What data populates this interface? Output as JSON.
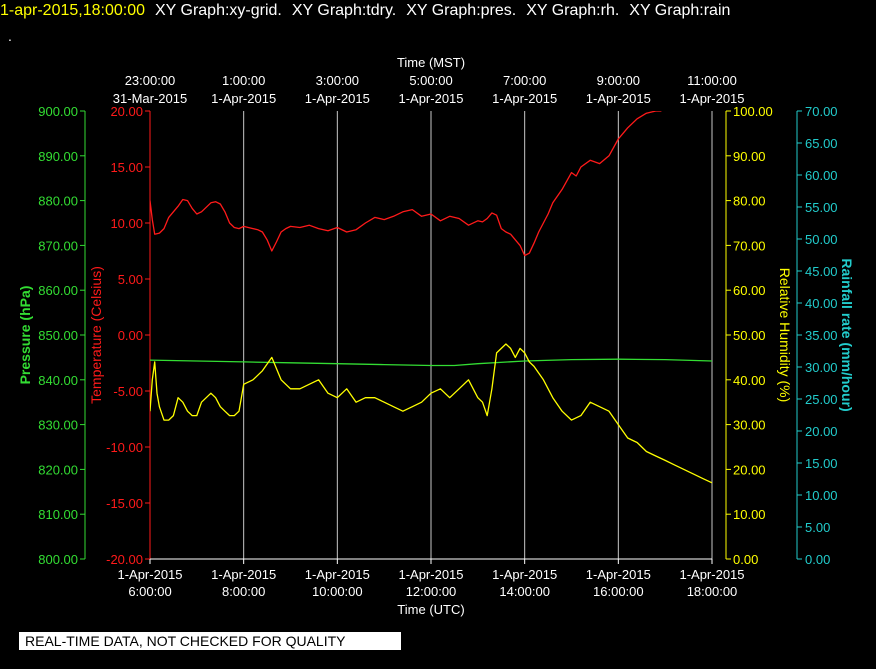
{
  "header": {
    "datetime": "1-apr-2015,18:00:00",
    "graphs": [
      "XY Graph:xy-grid.",
      "XY Graph:tdry.",
      "XY Graph:pres.",
      "XY Graph:rh.",
      "XY Graph:rain"
    ],
    "dot": "."
  },
  "footer_note": "REAL-TIME DATA, NOT CHECKED FOR QUALITY",
  "colors": {
    "background": "#000000",
    "grid": "#c8c8c8",
    "temperature": "#ff1a1a",
    "pressure": "#33dd33",
    "humidity": "#ffff00",
    "rain": "#22cccc",
    "text": "#ffffff"
  },
  "chart_data": {
    "type": "line",
    "top_axis": {
      "label": "Time (MST)",
      "ticks": [
        {
          "time": "23:00:00",
          "date": "31-Mar-2015"
        },
        {
          "time": "1:00:00",
          "date": "1-Apr-2015"
        },
        {
          "time": "3:00:00",
          "date": "1-Apr-2015"
        },
        {
          "time": "5:00:00",
          "date": "1-Apr-2015"
        },
        {
          "time": "7:00:00",
          "date": "1-Apr-2015"
        },
        {
          "time": "9:00:00",
          "date": "1-Apr-2015"
        },
        {
          "time": "11:00:00",
          "date": "1-Apr-2015"
        }
      ]
    },
    "bottom_axis": {
      "label": "Time (UTC)",
      "ticks": [
        {
          "date": "1-Apr-2015",
          "time": "6:00:00"
        },
        {
          "date": "1-Apr-2015",
          "time": "8:00:00"
        },
        {
          "date": "1-Apr-2015",
          "time": "10:00:00"
        },
        {
          "date": "1-Apr-2015",
          "time": "12:00:00"
        },
        {
          "date": "1-Apr-2015",
          "time": "14:00:00"
        },
        {
          "date": "1-Apr-2015",
          "time": "16:00:00"
        },
        {
          "date": "1-Apr-2015",
          "time": "18:00:00"
        }
      ],
      "xlim": [
        6,
        18
      ],
      "grid_hours": [
        8,
        10,
        12,
        14,
        16,
        18
      ]
    },
    "axes": {
      "pressure": {
        "label": "Pressure (hPa)",
        "ylim": [
          800,
          900
        ],
        "ticks": [
          "800.00",
          "810.00",
          "820.00",
          "830.00",
          "840.00",
          "850.00",
          "860.00",
          "870.00",
          "880.00",
          "890.00",
          "900.00"
        ]
      },
      "temperature": {
        "label": "Temperature (Celsius)",
        "ylim": [
          -20,
          20
        ],
        "ticks": [
          "-20.00",
          "-15.00",
          "-10.00",
          "-5.00",
          "0.00",
          "5.00",
          "10.00",
          "15.00",
          "20.00"
        ]
      },
      "humidity": {
        "label": "Relative Humidity (%)",
        "ylim": [
          0,
          100
        ],
        "ticks": [
          "0.00",
          "10.00",
          "20.00",
          "30.00",
          "40.00",
          "50.00",
          "60.00",
          "70.00",
          "80.00",
          "90.00",
          "100.00"
        ]
      },
      "rain": {
        "label": "Rainfall rate (mm/hour)",
        "ylim": [
          0,
          70
        ],
        "ticks": [
          "0.00",
          "5.00",
          "10.00",
          "15.00",
          "20.00",
          "25.00",
          "30.00",
          "35.00",
          "40.00",
          "45.00",
          "50.00",
          "55.00",
          "60.00",
          "65.00",
          "70.00"
        ]
      }
    },
    "series": [
      {
        "key": "temperature",
        "x": [
          6.0,
          6.05,
          6.1,
          6.2,
          6.3,
          6.4,
          6.5,
          6.6,
          6.7,
          6.8,
          6.9,
          7.0,
          7.1,
          7.2,
          7.3,
          7.4,
          7.5,
          7.6,
          7.7,
          7.8,
          7.9,
          8.0,
          8.1,
          8.2,
          8.3,
          8.4,
          8.5,
          8.6,
          8.7,
          8.8,
          8.9,
          9.0,
          9.2,
          9.4,
          9.6,
          9.8,
          10.0,
          10.2,
          10.4,
          10.6,
          10.8,
          11.0,
          11.2,
          11.4,
          11.6,
          11.8,
          12.0,
          12.2,
          12.4,
          12.6,
          12.8,
          13.0,
          13.1,
          13.2,
          13.3,
          13.4,
          13.5,
          13.6,
          13.7,
          13.8,
          13.9,
          14.0,
          14.1,
          14.2,
          14.3,
          14.4,
          14.5,
          14.6,
          14.8,
          15.0,
          15.1,
          15.2,
          15.4,
          15.6,
          15.8,
          16.0,
          16.1,
          16.2,
          16.4,
          16.6,
          16.8,
          16.92
        ],
        "values": [
          12,
          10.3,
          9.0,
          9.1,
          9.5,
          10.5,
          11.0,
          11.5,
          12.1,
          12.0,
          11.3,
          10.8,
          11.0,
          11.4,
          11.8,
          11.9,
          11.7,
          11.0,
          10.0,
          9.6,
          9.5,
          9.7,
          9.6,
          9.5,
          9.4,
          9.2,
          8.5,
          7.5,
          8.3,
          9.2,
          9.5,
          9.7,
          9.6,
          9.8,
          9.5,
          9.3,
          9.6,
          9.2,
          9.4,
          10.0,
          10.5,
          10.3,
          10.6,
          11.0,
          11.2,
          10.6,
          10.8,
          10.2,
          10.6,
          10.4,
          9.8,
          10.2,
          10.1,
          10.4,
          10.9,
          10.7,
          9.5,
          9.2,
          9.0,
          8.5,
          8.0,
          7.1,
          7.3,
          8.2,
          9.2,
          10.0,
          10.8,
          11.8,
          13.0,
          14.5,
          14.2,
          15.0,
          15.6,
          15.3,
          16.0,
          17.5,
          18.0,
          18.5,
          19.3,
          19.8,
          20.0,
          20.0
        ]
      },
      {
        "key": "pressure",
        "x": [
          6.0,
          7.0,
          8.0,
          9.0,
          10.0,
          11.0,
          12.0,
          12.5,
          13.0,
          14.0,
          15.0,
          16.0,
          17.0,
          18.0
        ],
        "values": [
          844.4,
          844.2,
          844.0,
          843.8,
          843.6,
          843.4,
          843.2,
          843.2,
          843.6,
          844.2,
          844.5,
          844.6,
          844.5,
          844.2
        ]
      },
      {
        "key": "humidity",
        "x": [
          6.0,
          6.05,
          6.1,
          6.15,
          6.2,
          6.3,
          6.4,
          6.5,
          6.6,
          6.7,
          6.8,
          6.9,
          7.0,
          7.1,
          7.2,
          7.3,
          7.4,
          7.5,
          7.6,
          7.7,
          7.8,
          7.9,
          8.0,
          8.2,
          8.4,
          8.6,
          8.8,
          9.0,
          9.2,
          9.4,
          9.6,
          9.8,
          10.0,
          10.2,
          10.4,
          10.6,
          10.8,
          11.0,
          11.2,
          11.4,
          11.6,
          11.8,
          12.0,
          12.2,
          12.4,
          12.6,
          12.8,
          13.0,
          13.1,
          13.2,
          13.3,
          13.4,
          13.5,
          13.6,
          13.7,
          13.8,
          13.9,
          14.0,
          14.1,
          14.2,
          14.4,
          14.6,
          14.8,
          15.0,
          15.2,
          15.4,
          15.6,
          15.8,
          16.0,
          16.2,
          16.4,
          16.6,
          16.8,
          17.0,
          17.2,
          17.4,
          17.6,
          17.8,
          18.0
        ],
        "values": [
          33,
          40,
          44,
          37,
          34,
          31,
          31,
          32,
          36,
          35,
          33,
          32,
          32,
          35,
          36,
          37,
          36,
          34,
          33,
          32,
          32,
          33,
          39,
          40,
          42,
          45,
          40,
          38,
          38,
          39,
          40,
          37,
          36,
          38,
          35,
          36,
          36,
          35,
          34,
          33,
          34,
          35,
          37,
          38,
          36,
          38,
          40,
          36,
          35,
          32,
          38,
          46,
          47,
          48,
          47,
          45,
          47,
          46,
          44,
          43,
          40,
          36,
          33,
          31,
          32,
          35,
          34,
          33,
          30,
          27,
          26,
          24,
          23,
          22,
          21,
          20,
          19,
          18,
          17
        ]
      }
    ]
  }
}
